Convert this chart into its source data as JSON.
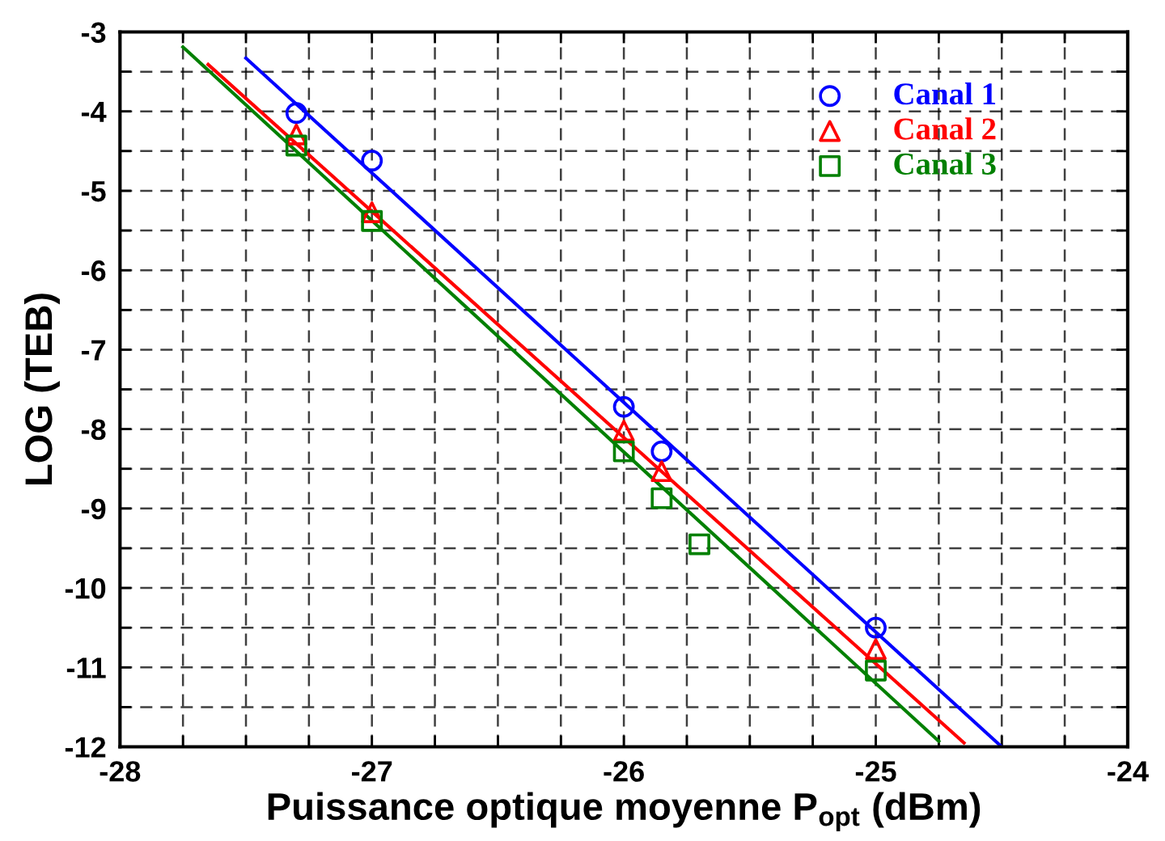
{
  "chart_data": {
    "type": "scatter",
    "xlabel": "Puissance optique moyenne P$_{opt}$ (dBm)",
    "ylabel": "LOG (TEB)",
    "xlim": [
      -28,
      -24
    ],
    "ylim": [
      -12,
      -3
    ],
    "xticks": [
      -28,
      {
        "value": -27.75,
        "label": null
      },
      {
        "value": -27.5,
        "label": null
      },
      {
        "value": -27.25,
        "label": null
      },
      -27,
      {
        "value": -26.75,
        "label": null
      },
      {
        "value": -26.5,
        "label": null
      },
      {
        "value": -26.25,
        "label": null
      },
      -26,
      {
        "value": -25.75,
        "label": null
      },
      {
        "value": -25.5,
        "label": null
      },
      {
        "value": -25.25,
        "label": null
      },
      -25,
      {
        "value": -24.75,
        "label": null
      },
      {
        "value": -24.5,
        "label": null
      },
      {
        "value": -24.25,
        "label": null
      },
      -24
    ],
    "yticks": [
      -12,
      {
        "value": -11.5,
        "label": null
      },
      -11,
      {
        "value": -10.5,
        "label": null
      },
      -10,
      {
        "value": -9.5,
        "label": null
      },
      -9,
      {
        "value": -8.5,
        "label": null
      },
      -8,
      {
        "value": -7.5,
        "label": null
      },
      -7,
      {
        "value": -6.5,
        "label": null
      },
      -6,
      {
        "value": -5.5,
        "label": null
      },
      -5,
      {
        "value": -4.5,
        "label": null
      },
      -4,
      {
        "value": -3.5,
        "label": null
      },
      -3
    ],
    "grid": true,
    "legend": "top right",
    "series": [
      {
        "name": "Canal 1",
        "marker": "circle",
        "color": "#0000ff",
        "x": [
          -27.3,
          -27.0,
          -26.0,
          -25.85,
          -25.0
        ],
        "values": [
          -4.02,
          -4.62,
          -7.72,
          -8.28,
          -10.5
        ]
      },
      {
        "name": "Canal 2",
        "marker": "triangle",
        "color": "#ff0000",
        "x": [
          -27.3,
          -27.0,
          -26.0,
          -25.85,
          -25.0
        ],
        "values": [
          -4.29,
          -5.27,
          -8.02,
          -8.53,
          -10.77
        ]
      },
      {
        "name": "Canal 3",
        "marker": "square",
        "color": "#008000",
        "x": [
          -27.3,
          -27.0,
          -26.0,
          -25.85,
          -25.7,
          -25.0
        ],
        "values": [
          -4.43,
          -5.38,
          -8.28,
          -8.87,
          -9.45,
          -11.04
        ]
      },
      {
        "type": "line",
        "color": "#0000ff",
        "x": [
          -27.5,
          -24.5
        ],
        "values": [
          -3.33,
          -12.0
        ]
      },
      {
        "type": "line",
        "color": "#ff0000",
        "x": [
          -27.65,
          -24.65
        ],
        "values": [
          -3.41,
          -11.95
        ]
      },
      {
        "type": "line",
        "color": "#008000",
        "x": [
          -27.75,
          -24.75
        ],
        "values": [
          -3.19,
          -11.93
        ]
      }
    ]
  }
}
